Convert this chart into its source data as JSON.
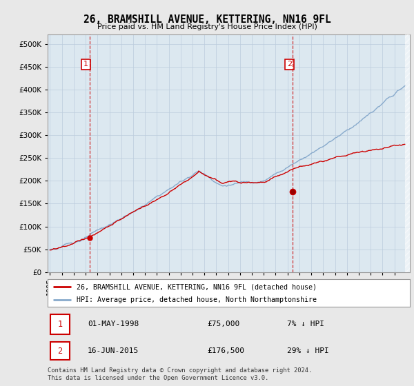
{
  "title": "26, BRAMSHILL AVENUE, KETTERING, NN16 9FL",
  "subtitle": "Price paid vs. HM Land Registry's House Price Index (HPI)",
  "ytick_values": [
    0,
    50000,
    100000,
    150000,
    200000,
    250000,
    300000,
    350000,
    400000,
    450000,
    500000
  ],
  "ylim": [
    0,
    520000
  ],
  "xlim_start": 1994.8,
  "xlim_end": 2025.3,
  "sale1": {
    "date_num": 1998.33,
    "price": 75000,
    "label": "1",
    "info": "01-MAY-1998",
    "amount": "£75,000",
    "pct": "7% ↓ HPI"
  },
  "sale2": {
    "date_num": 2015.45,
    "price": 176500,
    "label": "2",
    "info": "16-JUN-2015",
    "amount": "£176,500",
    "pct": "29% ↓ HPI"
  },
  "legend_line1": "26, BRAMSHILL AVENUE, KETTERING, NN16 9FL (detached house)",
  "legend_line2": "HPI: Average price, detached house, North Northamptonshire",
  "footer": "Contains HM Land Registry data © Crown copyright and database right 2024.\nThis data is licensed under the Open Government Licence v3.0.",
  "line_color_red": "#cc0000",
  "line_color_blue": "#88aacc",
  "dashed_vline_color": "#cc0000",
  "background_color": "#e8e8e8",
  "plot_bg_color": "#dce8f0",
  "grid_color": "#bbccdd",
  "xticks": [
    1995,
    1996,
    1997,
    1998,
    1999,
    2000,
    2001,
    2002,
    2003,
    2004,
    2005,
    2006,
    2007,
    2008,
    2009,
    2010,
    2011,
    2012,
    2013,
    2014,
    2015,
    2016,
    2017,
    2018,
    2019,
    2020,
    2021,
    2022,
    2023,
    2024
  ]
}
